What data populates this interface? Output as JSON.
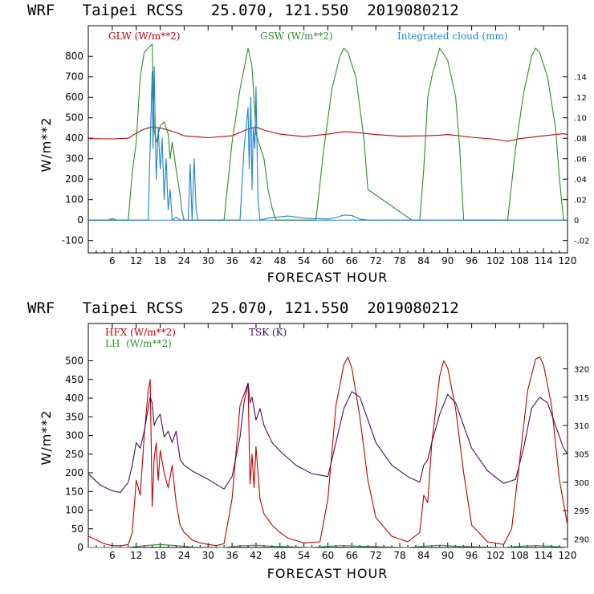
{
  "chart_data": [
    {
      "type": "line",
      "title": "WRF   Taipei RCSS   25.070, 121.550  2019080212",
      "xlabel": "FORECAST HOUR",
      "ylabel": "W/m**2",
      "xlim": [
        0,
        120
      ],
      "ylim": [
        -160,
        950
      ],
      "y2lim": [
        -0.032,
        0.19
      ],
      "xticks": [
        6,
        12,
        18,
        24,
        30,
        36,
        42,
        48,
        54,
        60,
        66,
        72,
        78,
        84,
        90,
        96,
        102,
        108,
        114,
        120
      ],
      "yticks": [
        -100,
        0,
        100,
        200,
        300,
        400,
        500,
        600,
        700,
        800
      ],
      "y2ticks": [
        -0.02,
        0,
        0.02,
        0.04,
        0.06,
        0.08,
        0.1,
        0.12,
        0.14
      ],
      "y2tick_labels": [
        "-.02",
        "0",
        ".02",
        ".04",
        ".06",
        ".08",
        ".10",
        ".12",
        ".14"
      ],
      "legend": [
        {
          "label": "GLW (W/m**2)",
          "color": "#c00000"
        },
        {
          "label": "GSW (W/m**2)",
          "color": "#2e8b2e"
        },
        {
          "label": "Integrated cloud (mm)",
          "color": "#1e82d2"
        }
      ],
      "series": [
        {
          "name": "GLW (W/m**2)",
          "axis": "left",
          "color": "#c00000",
          "x": [
            0,
            6,
            10,
            12,
            14,
            16,
            18,
            20,
            22,
            24,
            30,
            36,
            40,
            42,
            44,
            48,
            54,
            60,
            64,
            66,
            72,
            78,
            84,
            88,
            90,
            96,
            102,
            105,
            108,
            114,
            119,
            120
          ],
          "y": [
            398,
            397,
            400,
            425,
            445,
            455,
            450,
            440,
            428,
            412,
            403,
            412,
            445,
            455,
            440,
            420,
            408,
            420,
            432,
            430,
            418,
            410,
            412,
            415,
            418,
            405,
            395,
            385,
            398,
            412,
            422,
            418
          ]
        },
        {
          "name": "GSW (W/m**2)",
          "axis": "left",
          "color": "#2e8b2e",
          "x": [
            0,
            10,
            11,
            12,
            13,
            14,
            15,
            16,
            16.5,
            17,
            18,
            19,
            20,
            20.5,
            21,
            22,
            23,
            23.5,
            24,
            34,
            36,
            38,
            40,
            41,
            42,
            43,
            44,
            45,
            46,
            47,
            57,
            59,
            61,
            63,
            64,
            65,
            67,
            69,
            70,
            81,
            83,
            84,
            85,
            86,
            88,
            90,
            92,
            93,
            94,
            105,
            107,
            109,
            111,
            112,
            113,
            115,
            117,
            118,
            119,
            120
          ],
          "y": [
            0,
            0,
            230,
            380,
            700,
            820,
            840,
            860,
            440,
            380,
            460,
            480,
            420,
            300,
            380,
            250,
            120,
            40,
            0,
            0,
            380,
            640,
            840,
            750,
            420,
            360,
            300,
            150,
            60,
            0,
            0,
            350,
            640,
            800,
            840,
            820,
            700,
            400,
            150,
            0,
            0,
            250,
            600,
            700,
            840,
            780,
            600,
            350,
            0,
            0,
            350,
            620,
            800,
            840,
            820,
            700,
            450,
            200,
            0,
            0
          ]
        },
        {
          "name": "Integrated cloud (mm)",
          "axis": "right",
          "color": "#1e82d2",
          "x": [
            0,
            5,
            6,
            7,
            15,
            16,
            16.2,
            16.5,
            17,
            17.5,
            18,
            18.5,
            19,
            19.5,
            20,
            20.5,
            21,
            22,
            23,
            25,
            25.5,
            26,
            26.5,
            27,
            27.5,
            30,
            38,
            39,
            40,
            40.3,
            40.7,
            41,
            41.3,
            41.7,
            42,
            42.5,
            43,
            45,
            50,
            54,
            60,
            62,
            64,
            66,
            68,
            70,
            80,
            120
          ],
          "y": [
            0,
            0,
            0.0015,
            0,
            0,
            0.145,
            0.07,
            0.15,
            0.04,
            0.09,
            0.05,
            0.08,
            0.02,
            0.06,
            0.01,
            0.03,
            0,
            0.003,
            0,
            0,
            0.055,
            0,
            0.06,
            0.01,
            0,
            0,
            0,
            0.07,
            0.11,
            0.05,
            0.12,
            0.03,
            0.09,
            0.07,
            0.13,
            0.02,
            0,
            0.002,
            0.004,
            0.002,
            0.001,
            0.0025,
            0.005,
            0.0045,
            0.001,
            0,
            0,
            0
          ]
        }
      ]
    },
    {
      "type": "line",
      "title": "WRF   Taipei RCSS   25.070, 121.550  2019080212",
      "xlabel": "FORECAST HOUR",
      "ylabel": "W/m**2",
      "xlim": [
        0,
        120
      ],
      "ylim": [
        0,
        600
      ],
      "y2lim": [
        288.5,
        328
      ],
      "xticks": [
        6,
        12,
        18,
        24,
        30,
        36,
        42,
        48,
        54,
        60,
        66,
        72,
        78,
        84,
        90,
        96,
        102,
        108,
        114,
        120
      ],
      "yticks": [
        0,
        50,
        100,
        150,
        200,
        250,
        300,
        350,
        400,
        450,
        500
      ],
      "y2ticks": [
        290,
        295,
        300,
        305,
        310,
        315,
        320
      ],
      "legend": [
        {
          "label": "HFX (W/m**2)",
          "color": "#c00000"
        },
        {
          "label": "TSK (K)",
          "color": "#4b0a5a"
        },
        {
          "label": "LH  (W/m**2)",
          "color": "#2e8b2e"
        }
      ],
      "series": [
        {
          "name": "HFX (W/m**2)",
          "axis": "left",
          "color": "#c00000",
          "x": [
            0,
            2,
            4,
            6,
            8,
            10,
            11,
            12,
            13,
            14,
            15,
            15.5,
            16,
            16.5,
            17,
            17.5,
            18,
            19,
            20,
            21,
            22,
            23,
            24,
            26,
            28,
            30,
            32,
            34,
            36,
            38,
            40,
            40.5,
            41,
            41.5,
            42,
            42.5,
            43,
            44,
            46,
            48,
            50,
            54,
            58,
            60,
            62,
            64,
            65,
            66,
            68,
            70,
            72,
            76,
            80,
            83,
            84,
            85,
            86,
            88,
            89,
            90,
            92,
            94,
            96,
            100,
            104,
            106,
            108,
            110,
            112,
            113,
            114,
            116,
            118,
            120
          ],
          "y": [
            30,
            20,
            10,
            5,
            4,
            8,
            40,
            180,
            140,
            300,
            420,
            450,
            110,
            240,
            280,
            180,
            260,
            200,
            160,
            220,
            120,
            60,
            40,
            20,
            12,
            8,
            5,
            10,
            130,
            380,
            440,
            170,
            250,
            160,
            270,
            200,
            130,
            90,
            60,
            40,
            25,
            12,
            15,
            130,
            380,
            490,
            510,
            480,
            350,
            180,
            80,
            30,
            15,
            40,
            140,
            120,
            280,
            460,
            500,
            480,
            370,
            200,
            60,
            15,
            8,
            50,
            230,
            420,
            505,
            510,
            490,
            380,
            180,
            60
          ]
        },
        {
          "name": "TSK (K)",
          "axis": "right",
          "color": "#4b0a5a",
          "x": [
            0,
            3,
            6,
            8,
            10,
            11,
            12,
            13,
            14,
            15,
            15.5,
            16,
            16.5,
            17,
            18,
            19,
            20,
            21,
            22,
            23,
            24,
            26,
            30,
            34,
            36,
            38,
            39,
            40,
            40.5,
            41,
            42,
            43,
            44,
            46,
            48,
            52,
            56,
            60,
            62,
            64,
            66,
            68,
            70,
            72,
            76,
            80,
            83,
            84,
            85,
            86,
            88,
            90,
            92,
            94,
            96,
            100,
            104,
            107,
            109,
            111,
            113,
            115,
            117,
            119,
            120
          ],
          "y": [
            301.5,
            299.5,
            298.5,
            298.2,
            300,
            303,
            307,
            306,
            309,
            313,
            315,
            314,
            310,
            311,
            312,
            308,
            309,
            307,
            309,
            304,
            303,
            302,
            300.5,
            298.8,
            301,
            308,
            314,
            317.5,
            314,
            315,
            311,
            313,
            310,
            307,
            305.5,
            303,
            301.5,
            301,
            307,
            313,
            316,
            315,
            311,
            307,
            303,
            301,
            300,
            303,
            304,
            307,
            312,
            315.5,
            314,
            310,
            306,
            302,
            299.8,
            300.5,
            306,
            313,
            315,
            314,
            310,
            306,
            305
          ]
        },
        {
          "name": "LH  (W/m**2)",
          "axis": "left",
          "color": "#2e8b2e",
          "x": [
            0,
            10,
            14,
            18,
            22,
            26,
            34,
            38,
            42,
            46,
            56,
            60,
            64,
            68,
            80,
            84,
            88,
            92,
            104,
            108,
            112,
            116,
            120
          ],
          "y": [
            0,
            0,
            5,
            8,
            5,
            1,
            0,
            4,
            6,
            3,
            0,
            3,
            5,
            3,
            0,
            3,
            6,
            3,
            0,
            3,
            5,
            3,
            0
          ]
        }
      ]
    }
  ]
}
